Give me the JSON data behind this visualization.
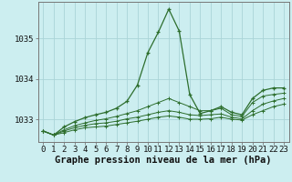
{
  "background_color": "#cceef0",
  "grid_color": "#aad4d8",
  "line_color": "#2d6e2d",
  "title": "Graphe pression niveau de la mer (hPa)",
  "tick_fontsize": 6.5,
  "title_fontsize": 7.5,
  "hours": [
    0,
    1,
    2,
    3,
    4,
    5,
    6,
    7,
    8,
    9,
    10,
    11,
    12,
    13,
    14,
    15,
    16,
    17,
    18,
    19,
    20,
    21,
    22,
    23
  ],
  "series": [
    [
      1032.72,
      1032.62,
      1032.82,
      1032.95,
      1033.05,
      1033.12,
      1033.18,
      1033.28,
      1033.45,
      1033.85,
      1034.65,
      1035.15,
      1035.72,
      1035.18,
      1033.62,
      1033.15,
      1033.22,
      1033.32,
      1033.18,
      1033.12,
      1033.52,
      1033.72,
      1033.78,
      1033.78
    ],
    [
      1032.72,
      1032.62,
      1032.75,
      1032.85,
      1032.92,
      1032.98,
      1033.02,
      1033.08,
      1033.15,
      1033.22,
      1033.32,
      1033.42,
      1033.52,
      1033.42,
      1033.32,
      1033.22,
      1033.22,
      1033.28,
      1033.12,
      1033.08,
      1033.42,
      1033.58,
      1033.62,
      1033.65
    ],
    [
      1032.72,
      1032.62,
      1032.72,
      1032.8,
      1032.86,
      1032.9,
      1032.92,
      1032.96,
      1033.02,
      1033.06,
      1033.12,
      1033.18,
      1033.22,
      1033.18,
      1033.12,
      1033.1,
      1033.12,
      1033.14,
      1033.06,
      1033.02,
      1033.22,
      1033.38,
      1033.46,
      1033.52
    ],
    [
      1032.72,
      1032.62,
      1032.68,
      1032.75,
      1032.8,
      1032.82,
      1032.84,
      1032.88,
      1032.92,
      1032.96,
      1033.01,
      1033.06,
      1033.09,
      1033.06,
      1033.01,
      1033.01,
      1033.02,
      1033.06,
      1033.01,
      1032.99,
      1033.12,
      1033.22,
      1033.32,
      1033.38
    ]
  ],
  "ylim": [
    1032.45,
    1035.9
  ],
  "yticks": [
    1033,
    1034,
    1035
  ],
  "xtick_labels": [
    "0",
    "1",
    "2",
    "3",
    "4",
    "5",
    "6",
    "7",
    "8",
    "9",
    "10",
    "11",
    "12",
    "13",
    "14",
    "15",
    "16",
    "17",
    "18",
    "19",
    "20",
    "21",
    "22",
    "23"
  ]
}
